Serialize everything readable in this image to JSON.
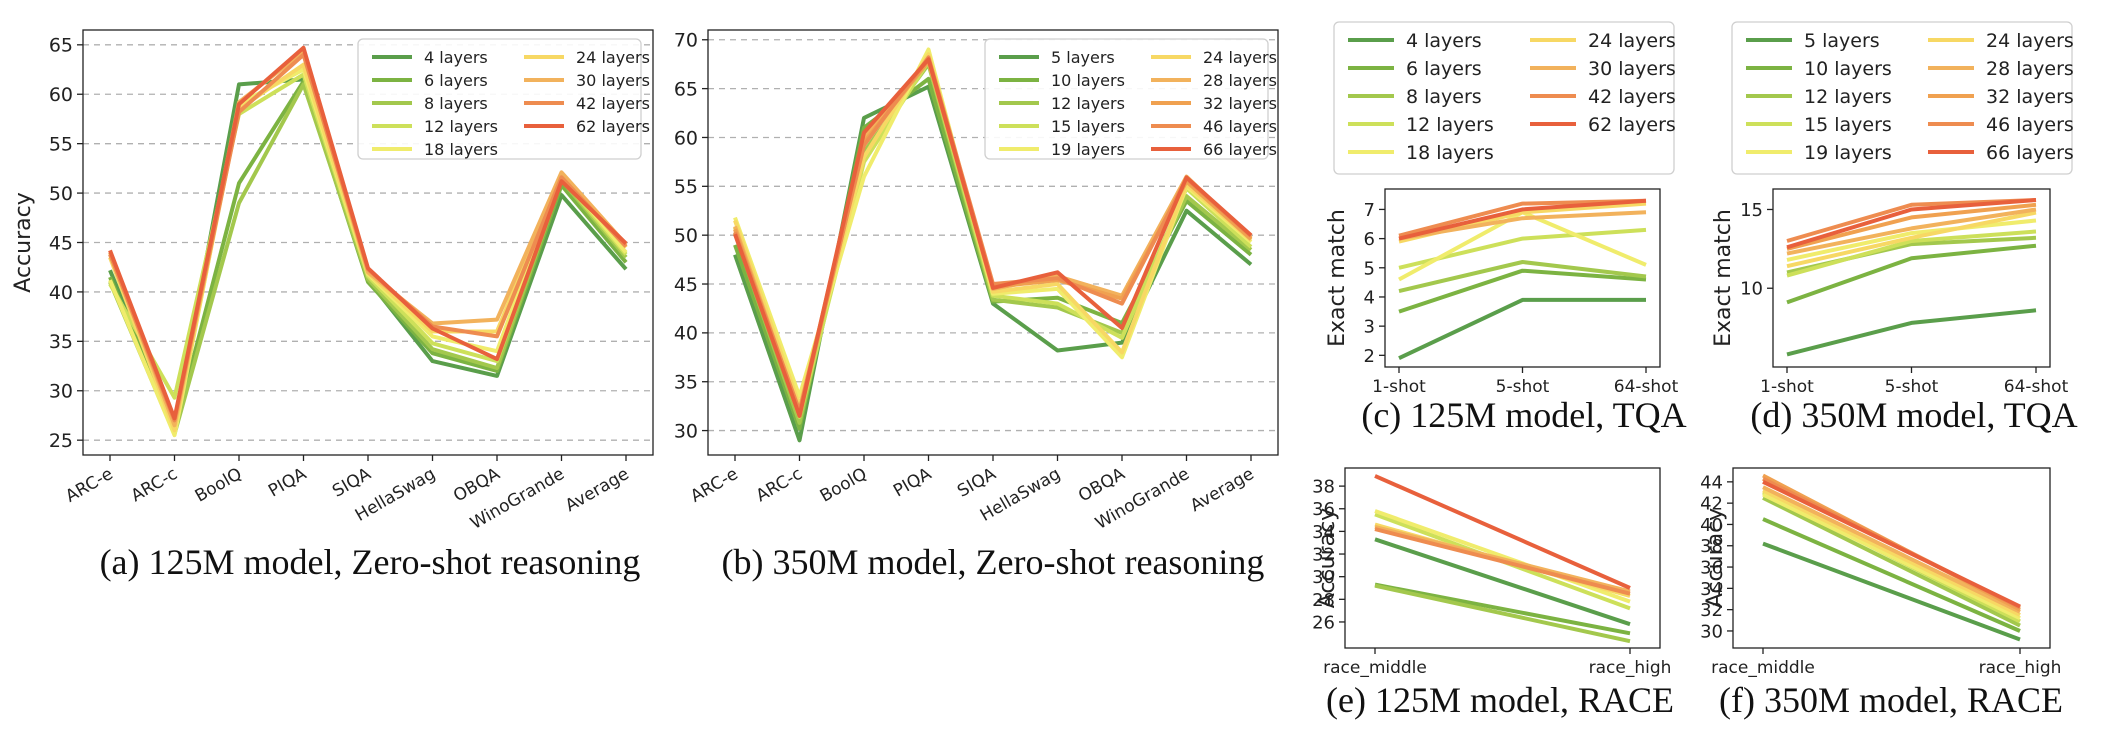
{
  "colors": {
    "grid": "#b0b0b0",
    "axis": "#222222",
    "legend_border": "#cfcfcf"
  },
  "chart_data": [
    {
      "id": "a",
      "type": "line",
      "caption": "(a) 125M model, Zero-shot reasoning",
      "ylabel": "Accuracy",
      "xlabel": "",
      "categories": [
        "ARC-e",
        "ARC-c",
        "BoolQ",
        "PIQA",
        "SIQA",
        "HellaSwag",
        "OBQA",
        "WinoGrande",
        "Average"
      ],
      "yticks": [
        25,
        30,
        35,
        40,
        45,
        50,
        55,
        60,
        65
      ],
      "ylim": [
        23.5,
        66.5
      ],
      "grid": true,
      "legend": {
        "placement": "upper-right",
        "columns": 2
      },
      "series": [
        {
          "name": "4 layers",
          "color": "#5a9e4b",
          "values": [
            42.2,
            26.2,
            61.0,
            61.5,
            41.2,
            33.0,
            31.5,
            49.8,
            42.3
          ]
        },
        {
          "name": "6 layers",
          "color": "#7cb342",
          "values": [
            41.5,
            26.0,
            51.0,
            61.3,
            41.0,
            33.8,
            32.0,
            50.8,
            43.0
          ]
        },
        {
          "name": "8 layers",
          "color": "#a3c84d",
          "values": [
            41.0,
            25.6,
            49.0,
            61.0,
            41.3,
            34.2,
            32.3,
            51.3,
            43.5
          ]
        },
        {
          "name": "12 layers",
          "color": "#cde05a",
          "values": [
            40.8,
            29.3,
            58.0,
            62.0,
            41.6,
            34.8,
            33.0,
            51.5,
            43.8
          ]
        },
        {
          "name": "18 layers",
          "color": "#f0ec6c",
          "values": [
            41.2,
            25.5,
            59.0,
            62.5,
            41.8,
            35.5,
            34.0,
            51.8,
            44.0
          ]
        },
        {
          "name": "24 layers",
          "color": "#f7d864",
          "values": [
            43.5,
            26.0,
            58.5,
            63.0,
            41.9,
            36.0,
            36.0,
            52.0,
            44.5
          ]
        },
        {
          "name": "30 layers",
          "color": "#f2b25c",
          "values": [
            44.0,
            26.5,
            59.2,
            64.3,
            42.0,
            36.8,
            37.2,
            52.1,
            44.8
          ]
        },
        {
          "name": "42 layers",
          "color": "#ee8c50",
          "values": [
            43.8,
            27.0,
            58.2,
            64.0,
            42.3,
            36.5,
            35.5,
            51.6,
            44.6
          ]
        },
        {
          "name": "62 layers",
          "color": "#e8603c",
          "values": [
            44.2,
            27.2,
            59.0,
            64.7,
            42.4,
            36.3,
            33.2,
            51.2,
            44.9
          ]
        }
      ]
    },
    {
      "id": "b",
      "type": "line",
      "caption": "(b) 350M model, Zero-shot reasoning",
      "ylabel": "",
      "xlabel": "",
      "categories": [
        "ARC-e",
        "ARC-c",
        "BoolQ",
        "PIQA",
        "SIQA",
        "HellaSwag",
        "OBQA",
        "WinoGrande",
        "Average"
      ],
      "yticks": [
        30,
        35,
        40,
        45,
        50,
        55,
        60,
        65,
        70
      ],
      "ylim": [
        27.5,
        71
      ],
      "grid": true,
      "legend": {
        "placement": "upper-right",
        "columns": 2
      },
      "series": [
        {
          "name": "5 layers",
          "color": "#5a9e4b",
          "values": [
            48.0,
            29.0,
            62.0,
            65.2,
            43.0,
            38.2,
            39.0,
            52.5,
            47.0
          ]
        },
        {
          "name": "10 layers",
          "color": "#7cb342",
          "values": [
            49.0,
            30.2,
            61.0,
            66.0,
            43.2,
            43.6,
            41.0,
            53.5,
            48.0
          ]
        },
        {
          "name": "12 layers",
          "color": "#a3c84d",
          "values": [
            50.2,
            30.8,
            58.5,
            67.5,
            43.4,
            42.6,
            40.0,
            54.0,
            48.5
          ]
        },
        {
          "name": "15 layers",
          "color": "#cde05a",
          "values": [
            50.8,
            31.4,
            57.5,
            67.8,
            43.8,
            43.0,
            39.5,
            54.8,
            48.8
          ]
        },
        {
          "name": "19 layers",
          "color": "#f0ec6c",
          "values": [
            51.8,
            33.5,
            56.0,
            69.0,
            44.0,
            44.5,
            37.5,
            55.0,
            49.3
          ]
        },
        {
          "name": "24 layers",
          "color": "#f7d864",
          "values": [
            51.5,
            32.5,
            58.0,
            68.5,
            44.2,
            45.0,
            38.0,
            55.2,
            49.5
          ]
        },
        {
          "name": "28 layers",
          "color": "#f2b25c",
          "values": [
            50.9,
            31.8,
            60.0,
            68.0,
            44.5,
            45.8,
            43.8,
            56.0,
            49.7
          ]
        },
        {
          "name": "32 layers",
          "color": "#f0a150",
          "values": [
            50.6,
            31.5,
            59.5,
            67.8,
            44.7,
            45.4,
            43.5,
            55.5,
            49.6
          ]
        },
        {
          "name": "46 layers",
          "color": "#ee8c50",
          "values": [
            50.3,
            32.0,
            59.2,
            68.2,
            45.0,
            45.6,
            43.0,
            55.8,
            49.9
          ]
        },
        {
          "name": "66 layers",
          "color": "#e8603c",
          "values": [
            50.1,
            31.5,
            60.5,
            68.0,
            44.6,
            46.2,
            40.5,
            55.9,
            50.0
          ]
        }
      ]
    },
    {
      "id": "c",
      "type": "line",
      "caption": "(c) 125M model, TQA",
      "ylabel": "Exact match",
      "xlabel": "",
      "categories": [
        "1-shot",
        "5-shot",
        "64-shot"
      ],
      "yticks": [
        2,
        3,
        4,
        5,
        6,
        7
      ],
      "ylim": [
        1.6,
        7.7
      ],
      "grid": false,
      "legend": {
        "placement": "above",
        "columns": 2
      },
      "series": [
        {
          "name": "4 layers",
          "color": "#5a9e4b",
          "values": [
            1.9,
            3.9,
            3.9
          ]
        },
        {
          "name": "6 layers",
          "color": "#7cb342",
          "values": [
            3.5,
            4.9,
            4.6
          ]
        },
        {
          "name": "8 layers",
          "color": "#a3c84d",
          "values": [
            4.2,
            5.2,
            4.7
          ]
        },
        {
          "name": "12 layers",
          "color": "#cde05a",
          "values": [
            5.0,
            6.0,
            6.3
          ]
        },
        {
          "name": "18 layers",
          "color": "#f0ec6c",
          "values": [
            4.6,
            6.9,
            5.1
          ]
        },
        {
          "name": "24 layers",
          "color": "#f7d864",
          "values": [
            5.9,
            6.9,
            7.2
          ]
        },
        {
          "name": "30 layers",
          "color": "#f2b25c",
          "values": [
            6.0,
            6.7,
            6.9
          ]
        },
        {
          "name": "42 layers",
          "color": "#ee8c50",
          "values": [
            6.1,
            7.2,
            7.3
          ]
        },
        {
          "name": "62 layers",
          "color": "#e8603c",
          "values": [
            6.0,
            7.0,
            7.3
          ]
        }
      ]
    },
    {
      "id": "d",
      "type": "line",
      "caption": "(d) 350M model, TQA",
      "ylabel": "Exact match",
      "xlabel": "",
      "categories": [
        "1-shot",
        "5-shot",
        "64-shot"
      ],
      "yticks": [
        10,
        15
      ],
      "ylim": [
        5.0,
        16.3
      ],
      "grid": false,
      "legend": {
        "placement": "above",
        "columns": 2
      },
      "series": [
        {
          "name": "5 layers",
          "color": "#5a9e4b",
          "values": [
            5.8,
            7.8,
            8.6
          ]
        },
        {
          "name": "10 layers",
          "color": "#7cb342",
          "values": [
            9.1,
            11.9,
            12.7
          ]
        },
        {
          "name": "12 layers",
          "color": "#a3c84d",
          "values": [
            11.0,
            12.8,
            13.2
          ]
        },
        {
          "name": "15 layers",
          "color": "#cde05a",
          "values": [
            10.8,
            13.0,
            13.6
          ]
        },
        {
          "name": "19 layers",
          "color": "#f0ec6c",
          "values": [
            11.8,
            13.5,
            14.3
          ]
        },
        {
          "name": "24 layers",
          "color": "#f7d864",
          "values": [
            11.4,
            13.2,
            14.8
          ]
        },
        {
          "name": "28 layers",
          "color": "#f2b25c",
          "values": [
            12.2,
            13.8,
            15.0
          ]
        },
        {
          "name": "32 layers",
          "color": "#f0a150",
          "values": [
            12.5,
            14.5,
            15.3
          ]
        },
        {
          "name": "46 layers",
          "color": "#ee8c50",
          "values": [
            13.0,
            15.3,
            15.6
          ]
        },
        {
          "name": "66 layers",
          "color": "#e8603c",
          "values": [
            12.6,
            15.0,
            15.6
          ]
        }
      ]
    },
    {
      "id": "e",
      "type": "line",
      "caption": "(e) 125M model, RACE",
      "ylabel": "Accuracy",
      "xlabel": "",
      "categories": [
        "race_middle",
        "race_high"
      ],
      "yticks": [
        26,
        28,
        30,
        32,
        34,
        36,
        38
      ],
      "ylim": [
        23.7,
        39.6
      ],
      "grid": false,
      "legend": null,
      "series": [
        {
          "name": "4 layers",
          "color": "#5a9e4b",
          "values": [
            33.3,
            25.8
          ]
        },
        {
          "name": "6 layers",
          "color": "#7cb342",
          "values": [
            29.3,
            25.0
          ]
        },
        {
          "name": "8 layers",
          "color": "#a3c84d",
          "values": [
            29.2,
            24.3
          ]
        },
        {
          "name": "12 layers",
          "color": "#cde05a",
          "values": [
            35.5,
            27.2
          ]
        },
        {
          "name": "18 layers",
          "color": "#f0ec6c",
          "values": [
            35.8,
            27.8
          ]
        },
        {
          "name": "24 layers",
          "color": "#f7d864",
          "values": [
            34.6,
            28.3
          ]
        },
        {
          "name": "30 layers",
          "color": "#f2b25c",
          "values": [
            34.4,
            28.7
          ]
        },
        {
          "name": "42 layers",
          "color": "#ee8c50",
          "values": [
            34.2,
            28.5
          ]
        },
        {
          "name": "62 layers",
          "color": "#e8603c",
          "values": [
            38.9,
            29.0
          ]
        }
      ]
    },
    {
      "id": "f",
      "type": "line",
      "caption": "(f) 350M model, RACE",
      "ylabel": "Accuracy",
      "xlabel": "",
      "categories": [
        "race_middle",
        "race_high"
      ],
      "yticks": [
        30,
        32,
        34,
        36,
        38,
        40,
        42,
        44
      ],
      "ylim": [
        28.4,
        45.3
      ],
      "grid": false,
      "legend": null,
      "series": [
        {
          "name": "5 layers",
          "color": "#5a9e4b",
          "values": [
            38.2,
            29.2
          ]
        },
        {
          "name": "10 layers",
          "color": "#7cb342",
          "values": [
            40.5,
            30.0
          ]
        },
        {
          "name": "12 layers",
          "color": "#a3c84d",
          "values": [
            42.5,
            30.5
          ]
        },
        {
          "name": "15 layers",
          "color": "#cde05a",
          "values": [
            43.0,
            30.9
          ]
        },
        {
          "name": "19 layers",
          "color": "#f0ec6c",
          "values": [
            42.8,
            31.2
          ]
        },
        {
          "name": "24 layers",
          "color": "#f7d864",
          "values": [
            43.2,
            31.5
          ]
        },
        {
          "name": "28 layers",
          "color": "#f2b25c",
          "values": [
            43.5,
            31.8
          ]
        },
        {
          "name": "32 layers",
          "color": "#f0a150",
          "values": [
            44.6,
            32.0
          ]
        },
        {
          "name": "46 layers",
          "color": "#ee8c50",
          "values": [
            44.3,
            32.2
          ]
        },
        {
          "name": "66 layers",
          "color": "#e8603c",
          "values": [
            44.0,
            32.3
          ]
        }
      ]
    }
  ]
}
